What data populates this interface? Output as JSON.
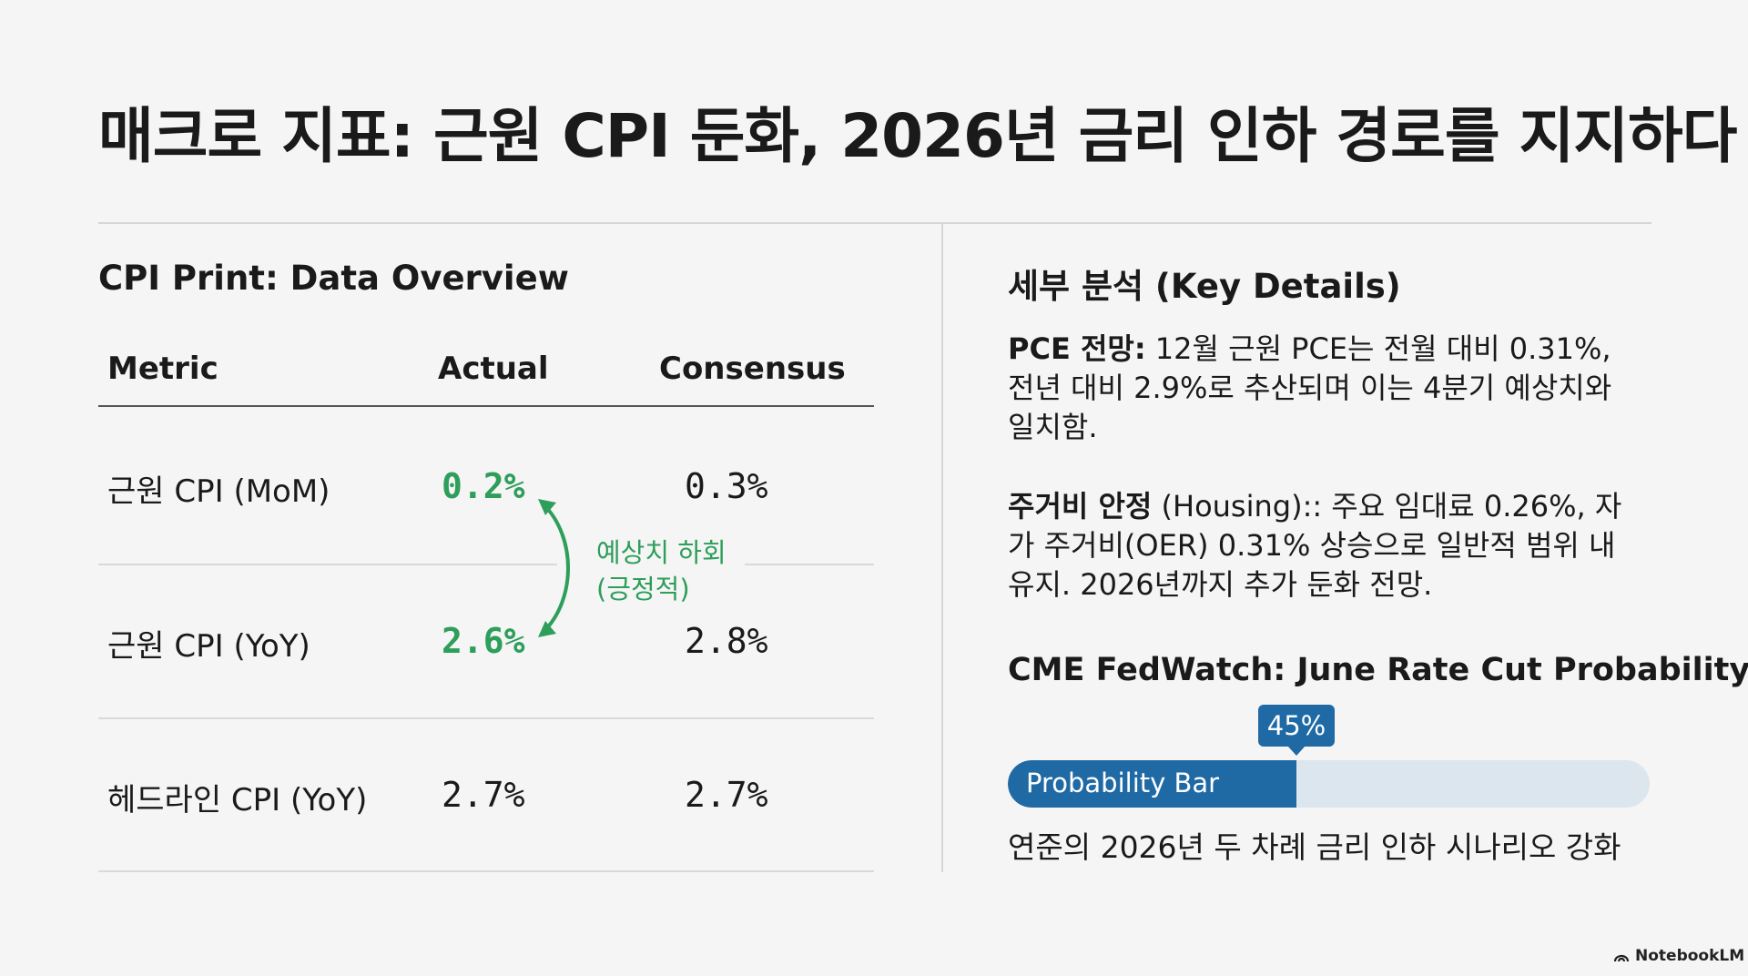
{
  "title": "매크로 지표: 근원 CPI 둔화, 2026년 금리 인하 경로를 지지하다",
  "left": {
    "heading": "CPI Print: Data Overview",
    "columns": {
      "metric": "Metric",
      "actual": "Actual",
      "consensus": "Consensus"
    },
    "rows": [
      {
        "metric": "근원 CPI (MoM)",
        "actual": "0.2%",
        "consensus": "0.3%",
        "highlight": true
      },
      {
        "metric": "근원 CPI (YoY)",
        "actual": "2.6%",
        "consensus": "2.8%",
        "highlight": true
      },
      {
        "metric": "헤드라인 CPI (YoY)",
        "actual": "2.7%",
        "consensus": "2.7%",
        "highlight": false
      }
    ],
    "beat_note_line1": "예상치 하회",
    "beat_note_line2": "(긍정적)",
    "accent_color": "#2e9e5b"
  },
  "right": {
    "heading": "세부 분석 (Key Details)",
    "pce": {
      "label": "PCE 전망:",
      "text": " 12월 근원 PCE는 전월 대비 0.31%, 전년 대비 2.9%로 추산되며 이는 4분기 예상치와 일치함."
    },
    "housing": {
      "label": "주거비 안정",
      "label_suffix": " (Housing)::",
      "text": " 주요 임대료 0.26%, 자가 주거비(OER) 0.31% 상승으로 일반적 범위 내 유지. 2026년까지 추가 둔화 전망."
    },
    "fedwatch": {
      "heading": "CME FedWatch: June Rate Cut Probability",
      "probability": 0.45,
      "probability_label": "45%",
      "bar_label": "Probability Bar",
      "caption": "연준의 2026년 두 차례 금리 인하 시나리오 강화",
      "bar_color": "#1f6aa5",
      "track_color": "#dce6ef"
    }
  },
  "brand": "NotebookLM"
}
